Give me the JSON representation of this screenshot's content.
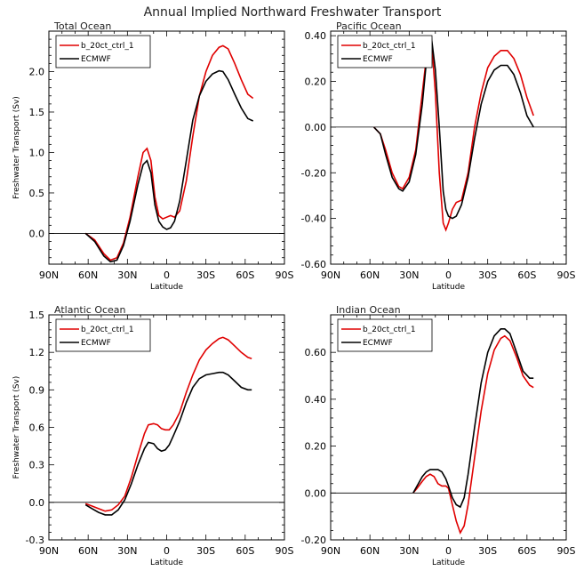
{
  "figure": {
    "title": "Annual Implied Northward Freshwater Transport"
  },
  "colors": {
    "b_20ct_ctrl_1": "#e00000",
    "ECMWF": "#000000",
    "zero_line": "#000000"
  },
  "chart_data": [
    {
      "type": "line",
      "title": "Total Ocean",
      "xlabel": "Latitude",
      "ylabel": "Freshwater Transport (Sv)",
      "xticks": [
        "90N",
        "60N",
        "30N",
        "0",
        "30S",
        "60S",
        "90S"
      ],
      "xlim": [
        90,
        -90
      ],
      "yticks": [
        "0.0",
        "0.5",
        "1.0",
        "1.5",
        "2.0"
      ],
      "ytick_values": [
        0,
        0.5,
        1.0,
        1.5,
        2.0
      ],
      "ylim": [
        -0.38,
        2.5
      ],
      "legend": "top-left",
      "series": [
        {
          "name": "b_20ct_ctrl_1",
          "x": [
            62,
            55,
            48,
            43,
            38,
            33,
            28,
            22,
            18,
            15,
            12,
            9,
            6,
            3,
            0,
            -3,
            -6,
            -10,
            -15,
            -20,
            -25,
            -30,
            -35,
            -40,
            -43,
            -47,
            -52,
            -57,
            -62,
            -66
          ],
          "y": [
            0.0,
            -0.08,
            -0.25,
            -0.33,
            -0.3,
            -0.12,
            0.2,
            0.7,
            1.0,
            1.05,
            0.9,
            0.45,
            0.22,
            0.18,
            0.2,
            0.22,
            0.2,
            0.28,
            0.65,
            1.2,
            1.7,
            2.0,
            2.2,
            2.3,
            2.32,
            2.28,
            2.1,
            1.9,
            1.72,
            1.67
          ]
        },
        {
          "name": "ECMWF",
          "x": [
            62,
            55,
            48,
            43,
            38,
            33,
            28,
            22,
            18,
            15,
            12,
            9,
            6,
            3,
            0,
            -3,
            -6,
            -10,
            -15,
            -20,
            -25,
            -30,
            -35,
            -40,
            -43,
            -47,
            -52,
            -57,
            -62,
            -66
          ],
          "y": [
            0.0,
            -0.1,
            -0.28,
            -0.35,
            -0.33,
            -0.15,
            0.15,
            0.6,
            0.85,
            0.9,
            0.75,
            0.35,
            0.15,
            0.08,
            0.05,
            0.07,
            0.15,
            0.4,
            0.9,
            1.4,
            1.7,
            1.88,
            1.97,
            2.01,
            2.0,
            1.9,
            1.72,
            1.55,
            1.42,
            1.39
          ]
        }
      ]
    },
    {
      "type": "line",
      "title": "Pacific Ocean",
      "xlabel": "Latitude",
      "ylabel": "",
      "xticks": [
        "90N",
        "60N",
        "30N",
        "0",
        "30S",
        "60S",
        "90S"
      ],
      "xlim": [
        90,
        -90
      ],
      "yticks": [
        "-0.60",
        "-0.40",
        "-0.20",
        "0.00",
        "0.20",
        "0.40"
      ],
      "ytick_values": [
        -0.6,
        -0.4,
        -0.2,
        0.0,
        0.2,
        0.4
      ],
      "ylim": [
        -0.6,
        0.42
      ],
      "legend": "top-left",
      "series": [
        {
          "name": "b_20ct_ctrl_1",
          "x": [
            57,
            52,
            48,
            43,
            38,
            35,
            30,
            25,
            20,
            17,
            15,
            13,
            10,
            7,
            4,
            2,
            0,
            -3,
            -6,
            -10,
            -15,
            -20,
            -25,
            -30,
            -35,
            -40,
            -45,
            -50,
            -55,
            -60,
            -65
          ],
          "y": [
            0.0,
            -0.03,
            -0.1,
            -0.2,
            -0.26,
            -0.27,
            -0.22,
            -0.1,
            0.15,
            0.3,
            0.39,
            0.38,
            0.15,
            -0.2,
            -0.42,
            -0.45,
            -0.42,
            -0.36,
            -0.33,
            -0.32,
            -0.2,
            0.0,
            0.15,
            0.26,
            0.31,
            0.335,
            0.335,
            0.3,
            0.23,
            0.13,
            0.05
          ]
        },
        {
          "name": "ECMWF",
          "x": [
            57,
            52,
            48,
            43,
            38,
            35,
            30,
            25,
            20,
            17,
            15,
            13,
            10,
            7,
            4,
            2,
            0,
            -3,
            -6,
            -10,
            -15,
            -20,
            -25,
            -30,
            -35,
            -40,
            -45,
            -50,
            -55,
            -60,
            -65
          ],
          "y": [
            0.0,
            -0.03,
            -0.12,
            -0.22,
            -0.27,
            -0.28,
            -0.24,
            -0.12,
            0.1,
            0.28,
            0.37,
            0.39,
            0.25,
            0.0,
            -0.28,
            -0.36,
            -0.39,
            -0.4,
            -0.39,
            -0.34,
            -0.22,
            -0.05,
            0.1,
            0.2,
            0.25,
            0.27,
            0.27,
            0.23,
            0.15,
            0.05,
            0.0
          ]
        }
      ]
    },
    {
      "type": "line",
      "title": "Atlantic Ocean",
      "xlabel": "Latitude",
      "ylabel": "Freshwater Transport (Sv)",
      "xticks": [
        "90N",
        "60N",
        "30N",
        "0",
        "30S",
        "60S",
        "90S"
      ],
      "xlim": [
        90,
        -90
      ],
      "yticks": [
        "-0.3",
        "0.0",
        "0.3",
        "0.6",
        "0.9",
        "1.2",
        "1.5"
      ],
      "ytick_values": [
        -0.3,
        0.0,
        0.3,
        0.6,
        0.9,
        1.2,
        1.5
      ],
      "ylim": [
        -0.3,
        1.5
      ],
      "legend": "top-left",
      "series": [
        {
          "name": "b_20ct_ctrl_1",
          "x": [
            62,
            57,
            52,
            47,
            42,
            37,
            32,
            27,
            22,
            17,
            14,
            10,
            7,
            4,
            1,
            -2,
            -5,
            -10,
            -15,
            -20,
            -25,
            -30,
            -35,
            -40,
            -43,
            -47,
            -52,
            -57,
            -62,
            -65
          ],
          "y": [
            -0.01,
            -0.03,
            -0.05,
            -0.07,
            -0.06,
            -0.02,
            0.05,
            0.2,
            0.38,
            0.55,
            0.62,
            0.63,
            0.62,
            0.59,
            0.58,
            0.58,
            0.62,
            0.72,
            0.88,
            1.02,
            1.14,
            1.22,
            1.27,
            1.31,
            1.32,
            1.3,
            1.25,
            1.2,
            1.16,
            1.15
          ]
        },
        {
          "name": "ECMWF",
          "x": [
            62,
            57,
            52,
            47,
            42,
            37,
            32,
            27,
            22,
            17,
            14,
            10,
            7,
            4,
            1,
            -2,
            -5,
            -10,
            -15,
            -20,
            -25,
            -30,
            -35,
            -40,
            -43,
            -47,
            -52,
            -57,
            -62,
            -65
          ],
          "y": [
            -0.02,
            -0.05,
            -0.08,
            -0.1,
            -0.1,
            -0.06,
            0.02,
            0.15,
            0.3,
            0.43,
            0.48,
            0.47,
            0.43,
            0.41,
            0.42,
            0.46,
            0.53,
            0.65,
            0.8,
            0.92,
            0.99,
            1.02,
            1.03,
            1.04,
            1.04,
            1.02,
            0.97,
            0.92,
            0.9,
            0.9
          ]
        }
      ]
    },
    {
      "type": "line",
      "title": "Indian Ocean",
      "xlabel": "Latitude",
      "ylabel": "",
      "xticks": [
        "90N",
        "60N",
        "30N",
        "0",
        "30S",
        "60S",
        "90S"
      ],
      "xlim": [
        90,
        -90
      ],
      "yticks": [
        "-0.20",
        "0.00",
        "0.20",
        "0.40",
        "0.60"
      ],
      "ytick_values": [
        -0.2,
        0.0,
        0.2,
        0.4,
        0.6
      ],
      "ylim": [
        -0.2,
        0.76
      ],
      "legend": "top-left",
      "series": [
        {
          "name": "b_20ct_ctrl_1",
          "x": [
            27,
            24,
            20,
            17,
            14,
            11,
            8,
            5,
            2,
            0,
            -3,
            -6,
            -9,
            -12,
            -15,
            -20,
            -25,
            -30,
            -35,
            -40,
            -43,
            -47,
            -52,
            -57,
            -62,
            -65
          ],
          "y": [
            0.0,
            0.02,
            0.05,
            0.07,
            0.08,
            0.07,
            0.04,
            0.03,
            0.03,
            0.02,
            -0.05,
            -0.12,
            -0.17,
            -0.14,
            -0.05,
            0.15,
            0.35,
            0.51,
            0.61,
            0.66,
            0.67,
            0.65,
            0.58,
            0.5,
            0.46,
            0.45
          ]
        },
        {
          "name": "ECMWF",
          "x": [
            27,
            24,
            20,
            17,
            14,
            11,
            8,
            5,
            2,
            0,
            -3,
            -6,
            -9,
            -12,
            -15,
            -20,
            -25,
            -30,
            -35,
            -40,
            -43,
            -47,
            -52,
            -57,
            -62,
            -65
          ],
          "y": [
            0.0,
            0.03,
            0.07,
            0.09,
            0.1,
            0.1,
            0.1,
            0.09,
            0.06,
            0.03,
            -0.02,
            -0.05,
            -0.06,
            -0.02,
            0.08,
            0.28,
            0.47,
            0.6,
            0.67,
            0.7,
            0.7,
            0.68,
            0.6,
            0.52,
            0.49,
            0.49
          ]
        }
      ]
    }
  ]
}
